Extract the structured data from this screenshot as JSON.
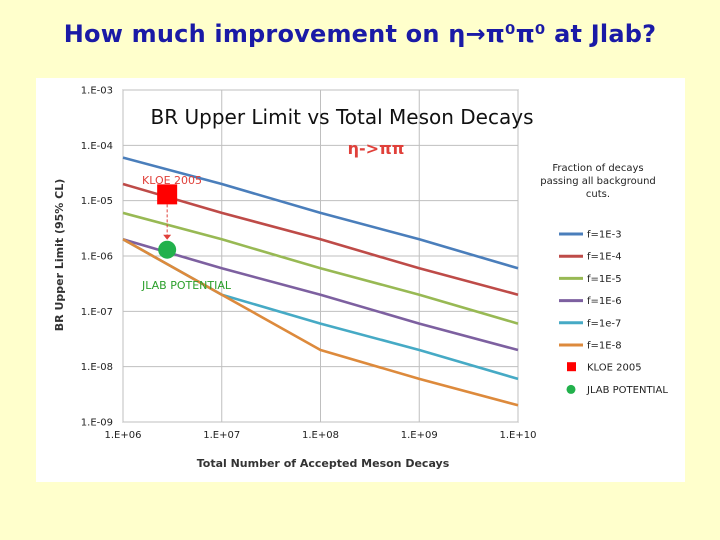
{
  "slide": {
    "title": "How much improvement on η→π⁰π⁰ at Jlab?"
  },
  "colors": {
    "background": "#ffffcc",
    "title": "#1a1aa6"
  },
  "chart_data": {
    "type": "line",
    "title": "BR Upper Limit vs Total Meson Decays",
    "subtitle": "η->ππ",
    "xlabel": "Total Number of Accepted Meson Decays",
    "ylabel": "BR Upper Limit (95% CL)",
    "x_scale": "log",
    "y_scale": "log",
    "xlim": [
      1000000.0,
      10000000000.0
    ],
    "ylim": [
      1e-09,
      0.001
    ],
    "x_ticks": [
      1000000.0,
      10000000.0,
      100000000.0,
      1000000000.0,
      10000000000.0
    ],
    "x_tick_labels": [
      "1.E+06",
      "1.E+07",
      "1.E+08",
      "1.E+09",
      "1.E+10"
    ],
    "y_ticks": [
      0.001,
      0.0001,
      1e-05,
      1e-06,
      1e-07,
      1e-08,
      1e-09
    ],
    "y_tick_labels": [
      "1.E-03",
      "1.E-04",
      "1.E-05",
      "1.E-06",
      "1.E-07",
      "1.E-08",
      "1.E-09"
    ],
    "grid": true,
    "legend_title": "Fraction of decays passing all background cuts.",
    "legend_position": "right",
    "series": [
      {
        "name": "f=1E-3",
        "color": "#4a7ebb",
        "x": [
          1000000.0,
          10000000.0,
          100000000.0,
          1000000000.0,
          10000000000.0
        ],
        "y": [
          6e-05,
          2e-05,
          6e-06,
          2e-06,
          6e-07
        ]
      },
      {
        "name": "f=1E-4",
        "color": "#be4b48",
        "x": [
          1000000.0,
          10000000.0,
          100000000.0,
          1000000000.0,
          10000000000.0
        ],
        "y": [
          2e-05,
          6e-06,
          2e-06,
          6e-07,
          2e-07
        ]
      },
      {
        "name": "f=1E-5",
        "color": "#98b954",
        "x": [
          1000000.0,
          10000000.0,
          100000000.0,
          1000000000.0,
          10000000000.0
        ],
        "y": [
          6e-06,
          2e-06,
          6e-07,
          2e-07,
          6e-08
        ]
      },
      {
        "name": "f=1E-6",
        "color": "#7d60a0",
        "x": [
          1000000.0,
          10000000.0,
          100000000.0,
          1000000000.0,
          10000000000.0
        ],
        "y": [
          2e-06,
          6e-07,
          2e-07,
          6e-08,
          2e-08
        ]
      },
      {
        "name": "f=1e-7",
        "color": "#46aac5",
        "x": [
          1000000.0,
          10000000.0,
          100000000.0,
          1000000000.0,
          10000000000.0
        ],
        "y": [
          2e-06,
          2e-07,
          6e-08,
          2e-08,
          6e-09
        ]
      },
      {
        "name": "f=1E-8",
        "color": "#dd8a3c",
        "x": [
          1000000.0,
          10000000.0,
          100000000.0,
          1000000000.0,
          10000000000.0
        ],
        "y": [
          2e-06,
          2e-07,
          2e-08,
          6e-09,
          2e-09
        ]
      }
    ],
    "points": [
      {
        "name": "KLOE 2005",
        "label": "KLOE 2005",
        "marker": "square",
        "color": "#ff0000",
        "x": 2800000.0,
        "y": 1.3e-05
      },
      {
        "name": "JLAB POTENTIAL",
        "label": "JLAB POTENTIAL",
        "marker": "circle",
        "color": "#22b14c",
        "x": 2800000.0,
        "y": 1.3e-06
      }
    ],
    "annotation_colors": {
      "kloe_label": "#e0403a",
      "jlab_label": "#2ca02c",
      "subtitle": "#e0403a",
      "arrow": "#e0403a"
    }
  }
}
